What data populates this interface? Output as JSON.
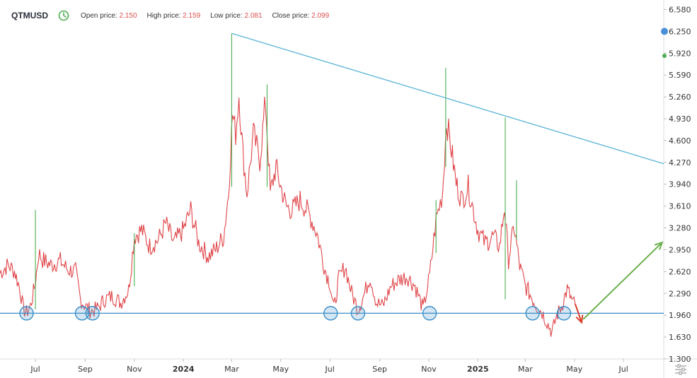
{
  "header": {
    "symbol": "QTMUSD",
    "open_label": "Open price:",
    "open_value": "2.150",
    "high_label": "High price:",
    "high_value": "2.159",
    "low_label": "Low price:",
    "low_value": "2.081",
    "close_label": "Close price:",
    "close_value": "2.099"
  },
  "icons": {
    "clock": "clock-icon",
    "settings": "settings-sliders-icon"
  },
  "colors": {
    "up": "#4caf50",
    "down": "#e0464a",
    "trendline": "#5ab4d6",
    "support": "#3a8fc9",
    "circle": "#3a8fc9",
    "arrow_up": "#6ab04c",
    "arrow_down": "#d9412e",
    "axis": "#dddddd"
  },
  "chart_data": {
    "type": "line",
    "title": "",
    "xlabel": "",
    "ylabel": "",
    "ylim": [
      1.3,
      6.66
    ],
    "y_ticks": [
      "6.580",
      "6.250",
      "5.920",
      "5.590",
      "5.260",
      "4.930",
      "4.600",
      "4.270",
      "3.940",
      "3.610",
      "3.280",
      "2.950",
      "2.620",
      "2.290",
      "1.960",
      "1.630",
      "1.300"
    ],
    "x_ticks": [
      {
        "label": "Jul",
        "date": "2023-07-01",
        "year": false
      },
      {
        "label": "Sep",
        "date": "2023-09-01",
        "year": false
      },
      {
        "label": "Nov",
        "date": "2023-11-01",
        "year": false
      },
      {
        "label": "2024",
        "date": "2024-01-01",
        "year": true
      },
      {
        "label": "Mar",
        "date": "2024-03-01",
        "year": false
      },
      {
        "label": "May",
        "date": "2024-05-01",
        "year": false
      },
      {
        "label": "Jul",
        "date": "2024-07-01",
        "year": false
      },
      {
        "label": "Sep",
        "date": "2024-09-01",
        "year": false
      },
      {
        "label": "Nov",
        "date": "2024-11-01",
        "year": false
      },
      {
        "label": "2025",
        "date": "2025-01-01",
        "year": true
      },
      {
        "label": "Mar",
        "date": "2025-03-01",
        "year": false
      },
      {
        "label": "May",
        "date": "2025-05-01",
        "year": false
      },
      {
        "label": "Jul",
        "date": "2025-07-01",
        "year": false
      }
    ],
    "x_range": [
      "2023-05-18",
      "2025-08-20"
    ],
    "series": [
      {
        "points": [
          [
            "2023-05-18",
            2.6
          ],
          [
            "2023-05-28",
            2.72
          ],
          [
            "2023-06-05",
            2.63
          ],
          [
            "2023-06-12",
            2.35
          ],
          [
            "2023-06-16",
            2.05
          ],
          [
            "2023-06-20",
            2.0
          ],
          [
            "2023-06-25",
            2.1
          ],
          [
            "2023-07-01",
            2.45
          ],
          [
            "2023-07-05",
            2.9
          ],
          [
            "2023-07-10",
            2.8
          ],
          [
            "2023-07-20",
            2.72
          ],
          [
            "2023-08-01",
            2.78
          ],
          [
            "2023-08-10",
            2.65
          ],
          [
            "2023-08-20",
            2.62
          ],
          [
            "2023-08-26",
            2.2
          ],
          [
            "2023-09-01",
            2.1
          ],
          [
            "2023-09-08",
            2.02
          ],
          [
            "2023-09-16",
            2.06
          ],
          [
            "2023-09-25",
            2.2
          ],
          [
            "2023-10-05",
            2.25
          ],
          [
            "2023-10-15",
            2.15
          ],
          [
            "2023-10-25",
            2.35
          ],
          [
            "2023-11-01",
            3.15
          ],
          [
            "2023-11-10",
            3.25
          ],
          [
            "2023-11-20",
            3.0
          ],
          [
            "2023-12-01",
            3.1
          ],
          [
            "2023-12-10",
            3.35
          ],
          [
            "2023-12-20",
            3.05
          ],
          [
            "2024-01-01",
            3.25
          ],
          [
            "2024-01-10",
            3.55
          ],
          [
            "2024-01-20",
            3.05
          ],
          [
            "2024-02-01",
            2.85
          ],
          [
            "2024-02-10",
            2.95
          ],
          [
            "2024-02-20",
            3.15
          ],
          [
            "2024-02-26",
            3.8
          ],
          [
            "2024-03-02",
            5.0
          ],
          [
            "2024-03-06",
            4.7
          ],
          [
            "2024-03-10",
            5.3
          ],
          [
            "2024-03-15",
            4.4
          ],
          [
            "2024-03-20",
            3.8
          ],
          [
            "2024-03-28",
            4.7
          ],
          [
            "2024-04-05",
            4.3
          ],
          [
            "2024-04-12",
            5.2
          ],
          [
            "2024-04-18",
            3.8
          ],
          [
            "2024-04-25",
            4.2
          ],
          [
            "2024-05-01",
            3.9
          ],
          [
            "2024-05-08",
            3.6
          ],
          [
            "2024-05-15",
            3.55
          ],
          [
            "2024-05-25",
            3.7
          ],
          [
            "2024-06-05",
            3.5
          ],
          [
            "2024-06-15",
            3.2
          ],
          [
            "2024-06-25",
            2.65
          ],
          [
            "2024-07-01",
            2.45
          ],
          [
            "2024-07-06",
            2.05
          ],
          [
            "2024-07-12",
            2.5
          ],
          [
            "2024-07-20",
            2.7
          ],
          [
            "2024-07-28",
            2.3
          ],
          [
            "2024-08-05",
            2.05
          ],
          [
            "2024-08-12",
            2.25
          ],
          [
            "2024-08-20",
            2.55
          ],
          [
            "2024-08-28",
            2.15
          ],
          [
            "2024-09-05",
            2.1
          ],
          [
            "2024-09-15",
            2.4
          ],
          [
            "2024-09-25",
            2.5
          ],
          [
            "2024-10-05",
            2.55
          ],
          [
            "2024-10-15",
            2.4
          ],
          [
            "2024-10-25",
            2.05
          ],
          [
            "2024-11-02",
            2.55
          ],
          [
            "2024-11-10",
            3.4
          ],
          [
            "2024-11-18",
            3.8
          ],
          [
            "2024-11-23",
            4.9
          ],
          [
            "2024-11-28",
            4.55
          ],
          [
            "2024-12-05",
            3.95
          ],
          [
            "2024-12-12",
            3.7
          ],
          [
            "2024-12-20",
            3.9
          ],
          [
            "2025-01-01",
            3.25
          ],
          [
            "2025-01-10",
            3.05
          ],
          [
            "2025-01-20",
            3.15
          ],
          [
            "2025-01-28",
            3.0
          ],
          [
            "2025-02-03",
            3.6
          ],
          [
            "2025-02-08",
            2.8
          ],
          [
            "2025-02-15",
            3.3
          ],
          [
            "2025-02-22",
            2.7
          ],
          [
            "2025-03-01",
            2.4
          ],
          [
            "2025-03-08",
            2.25
          ],
          [
            "2025-03-15",
            2.1
          ],
          [
            "2025-03-22",
            2.0
          ],
          [
            "2025-03-28",
            1.85
          ],
          [
            "2025-04-03",
            1.7
          ],
          [
            "2025-04-09",
            1.95
          ],
          [
            "2025-04-15",
            2.1
          ],
          [
            "2025-04-22",
            2.35
          ],
          [
            "2025-04-29",
            2.15
          ],
          [
            "2025-05-02",
            2.12
          ]
        ]
      }
    ],
    "annotations": {
      "trendline": [
        [
          "2024-03-01",
          6.22
        ],
        [
          "2025-08-20",
          4.25
        ]
      ],
      "support_level": 1.99,
      "support_touches": [
        "2023-06-20",
        "2023-08-28",
        "2023-09-10",
        "2024-07-02",
        "2024-08-05",
        "2024-11-02",
        "2025-03-10",
        "2025-04-18"
      ],
      "projection_down": [
        [
          "2025-05-02",
          2.13
        ],
        [
          "2025-05-10",
          1.85
        ]
      ],
      "projection_up": [
        [
          "2025-05-12",
          1.9
        ],
        [
          "2025-08-18",
          3.06
        ]
      ]
    }
  }
}
